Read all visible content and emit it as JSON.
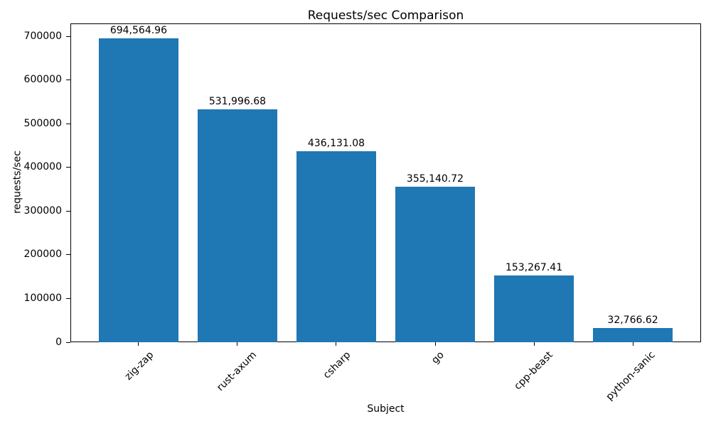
{
  "chart_data": {
    "type": "bar",
    "title": "Requests/sec Comparison",
    "xlabel": "Subject",
    "ylabel": "requests/sec",
    "categories": [
      "zig-zap",
      "rust-axum",
      "csharp",
      "go",
      "cpp-beast",
      "python-sanic"
    ],
    "values": [
      694564.96,
      531996.68,
      436131.08,
      355140.72,
      153267.41,
      32766.62
    ],
    "value_labels": [
      "694,564.96",
      "531,996.68",
      "436,131.08",
      "355,140.72",
      "153,267.41",
      "32,766.62"
    ],
    "yticks": [
      0,
      100000,
      200000,
      300000,
      400000,
      500000,
      600000,
      700000
    ],
    "ytick_labels": [
      "0",
      "100000",
      "200000",
      "300000",
      "400000",
      "500000",
      "600000",
      "700000"
    ],
    "ylim": [
      0,
      729293
    ],
    "bar_color": "#1f77b4",
    "text_color": "#000000",
    "grid": false,
    "legend": null,
    "x_tick_rotation_deg": 45,
    "bar_width_fraction": 0.8
  }
}
